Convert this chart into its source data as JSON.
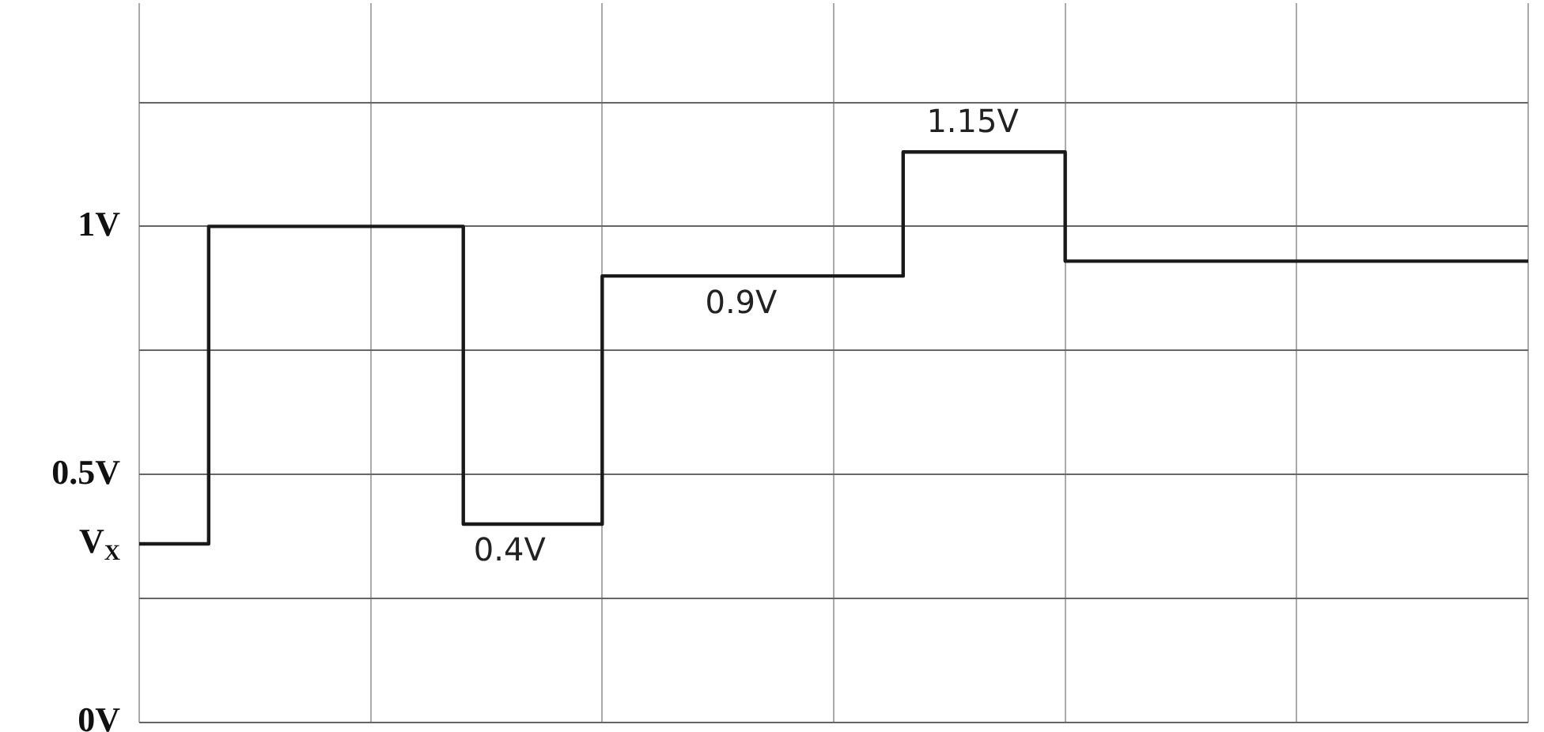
{
  "chart_data": {
    "type": "step",
    "categories": [
      null,
      null,
      null,
      null,
      null,
      null,
      null,
      null,
      null,
      null,
      null,
      null,
      null,
      null,
      null,
      null,
      null,
      null,
      null,
      null,
      null,
      null,
      null,
      null,
      null,
      null,
      null,
      null,
      null,
      null,
      null,
      null,
      null,
      null,
      null,
      null,
      null,
      null,
      null,
      null,
      null,
      null,
      null,
      null,
      null,
      null,
      null,
      null,
      null,
      null,
      null,
      null,
      null,
      null,
      null,
      null,
      null,
      null,
      null,
      null,
      null
    ],
    "series": [
      {
        "color": "#1a1a1a",
        "values": [
          0.36,
          0.36,
          0.36,
          1,
          1,
          1,
          1,
          1,
          1,
          1,
          1,
          1,
          1,
          1,
          0.4,
          0.4,
          0.4,
          0.4,
          0.4,
          0.4,
          0.9,
          0.9,
          0.9,
          0.9,
          0.9,
          0.9,
          0.9,
          0.9,
          0.9,
          0.9,
          0.9,
          0.9,
          0.9,
          1.15,
          1.15,
          1.15,
          1.15,
          1.15,
          1.15,
          1.15,
          0.93,
          0.93,
          0.93,
          0.93,
          0.93,
          0.93,
          0.93,
          0.93,
          0.93,
          0.93,
          0.93,
          0.93,
          0.93,
          0.93,
          0.93,
          0.93,
          0.93,
          0.93,
          0.93,
          0.93,
          0.93
        ],
        "value_labels": [
          null,
          null,
          null,
          null,
          null,
          null,
          null,
          null,
          null,
          null,
          null,
          null,
          null,
          null,
          null,
          null,
          "0.4V",
          null,
          null,
          null,
          null,
          null,
          null,
          null,
          null,
          null,
          "0.9V",
          null,
          null,
          null,
          null,
          null,
          null,
          null,
          null,
          null,
          "1.15V",
          null,
          null,
          null,
          null,
          null,
          null,
          null,
          null,
          null,
          null,
          null,
          null,
          null,
          null,
          null,
          null,
          null,
          null,
          null,
          null,
          null,
          null,
          null,
          null
        ]
      }
    ],
    "ylim": [
      0,
      1.45
    ],
    "yticks": [
      {
        "value": 0,
        "label": "0V"
      },
      {
        "value": 0.25,
        "label": null
      },
      {
        "value": 0.5,
        "label": "0.5V"
      },
      {
        "value": 0.75,
        "label": null
      },
      {
        "value": 1,
        "label": "1V"
      },
      {
        "value": 1.25,
        "label": null
      }
    ],
    "annotations": [
      "V$_{X}$"
    ],
    "tick_labels": "y",
    "grid": true,
    "legend": false,
    "marker": "none",
    "line_style": "solid"
  }
}
